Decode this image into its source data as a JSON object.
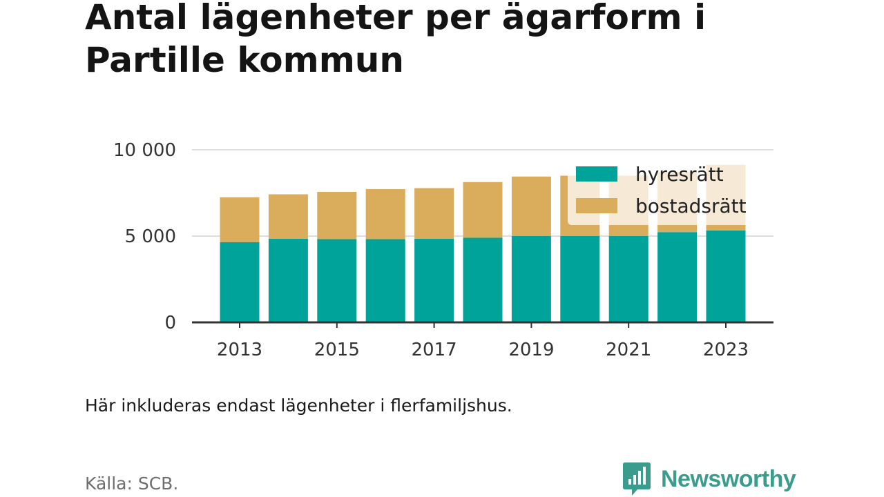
{
  "title": "Antal lägenheter per ägarform i Partille kommun",
  "note": "Här inkluderas endast lägenheter i flerfamiljshus.",
  "source": "Källa: SCB.",
  "brand": {
    "name": "Newsworthy",
    "icon": "newsworthy-logo-icon"
  },
  "colors": {
    "hyresratt": "#00a39a",
    "bostadsratt": "#d9ad5b",
    "axis": "#333333",
    "grid": "#dddddd"
  },
  "chart_data": {
    "type": "bar",
    "stacked": true,
    "categories": [
      "2013",
      "2014",
      "2015",
      "2016",
      "2017",
      "2018",
      "2019",
      "2020",
      "2021",
      "2022",
      "2023"
    ],
    "x_tick_labels": [
      "2013",
      "2015",
      "2017",
      "2019",
      "2021",
      "2023"
    ],
    "series": [
      {
        "name": "hyresrätt",
        "color": "#00a39a",
        "values": [
          4650,
          4850,
          4820,
          4820,
          4850,
          4900,
          5000,
          5000,
          5000,
          5230,
          5330
        ]
      },
      {
        "name": "bostadsrätt",
        "color": "#d9ad5b",
        "values": [
          2600,
          2570,
          2740,
          2900,
          2930,
          3230,
          3450,
          3500,
          3500,
          3500,
          3800
        ]
      }
    ],
    "ylim": [
      0,
      10000
    ],
    "y_ticks": [
      0,
      5000,
      10000
    ],
    "y_tick_labels": [
      "0",
      "5 000",
      "10 000"
    ],
    "grid": true,
    "legend_position": "top-right"
  }
}
